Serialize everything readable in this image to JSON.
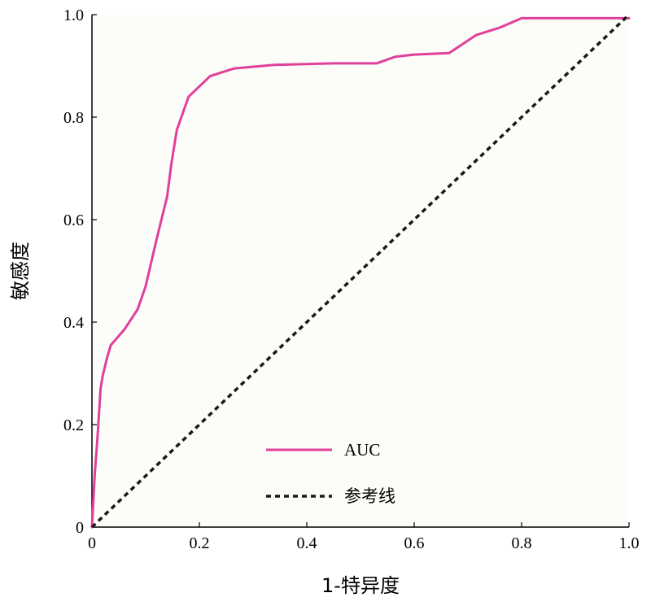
{
  "chart_data": {
    "type": "line",
    "xlabel": "1-特异度",
    "ylabel": "敏感度",
    "xlim": [
      0,
      1
    ],
    "ylim": [
      0,
      1
    ],
    "x_ticks": [
      "0",
      "0.2",
      "0.4",
      "0.6",
      "0.8",
      "1.0"
    ],
    "y_ticks": [
      "0",
      "0.2",
      "0.4",
      "0.6",
      "0.8",
      "1.0"
    ],
    "grid": false,
    "legend_position": "lower-center",
    "series": [
      {
        "name": "AUC",
        "color": "#e0409b",
        "style": "solid",
        "x": [
          0,
          0.005,
          0.01,
          0.013,
          0.016,
          0.02,
          0.028,
          0.035,
          0.06,
          0.085,
          0.1,
          0.12,
          0.14,
          0.148,
          0.158,
          0.18,
          0.22,
          0.265,
          0.34,
          0.45,
          0.53,
          0.565,
          0.6,
          0.665,
          0.715,
          0.76,
          0.8,
          1.0
        ],
        "y": [
          0,
          0.1,
          0.17,
          0.22,
          0.27,
          0.295,
          0.33,
          0.355,
          0.385,
          0.425,
          0.47,
          0.56,
          0.645,
          0.71,
          0.775,
          0.84,
          0.88,
          0.895,
          0.902,
          0.905,
          0.905,
          0.918,
          0.922,
          0.925,
          0.96,
          0.975,
          0.993,
          0.993
        ]
      },
      {
        "name": "参考线",
        "color": "#1a1a1a",
        "style": "dashed",
        "x": [
          0,
          1
        ],
        "y": [
          0,
          1
        ]
      }
    ]
  }
}
